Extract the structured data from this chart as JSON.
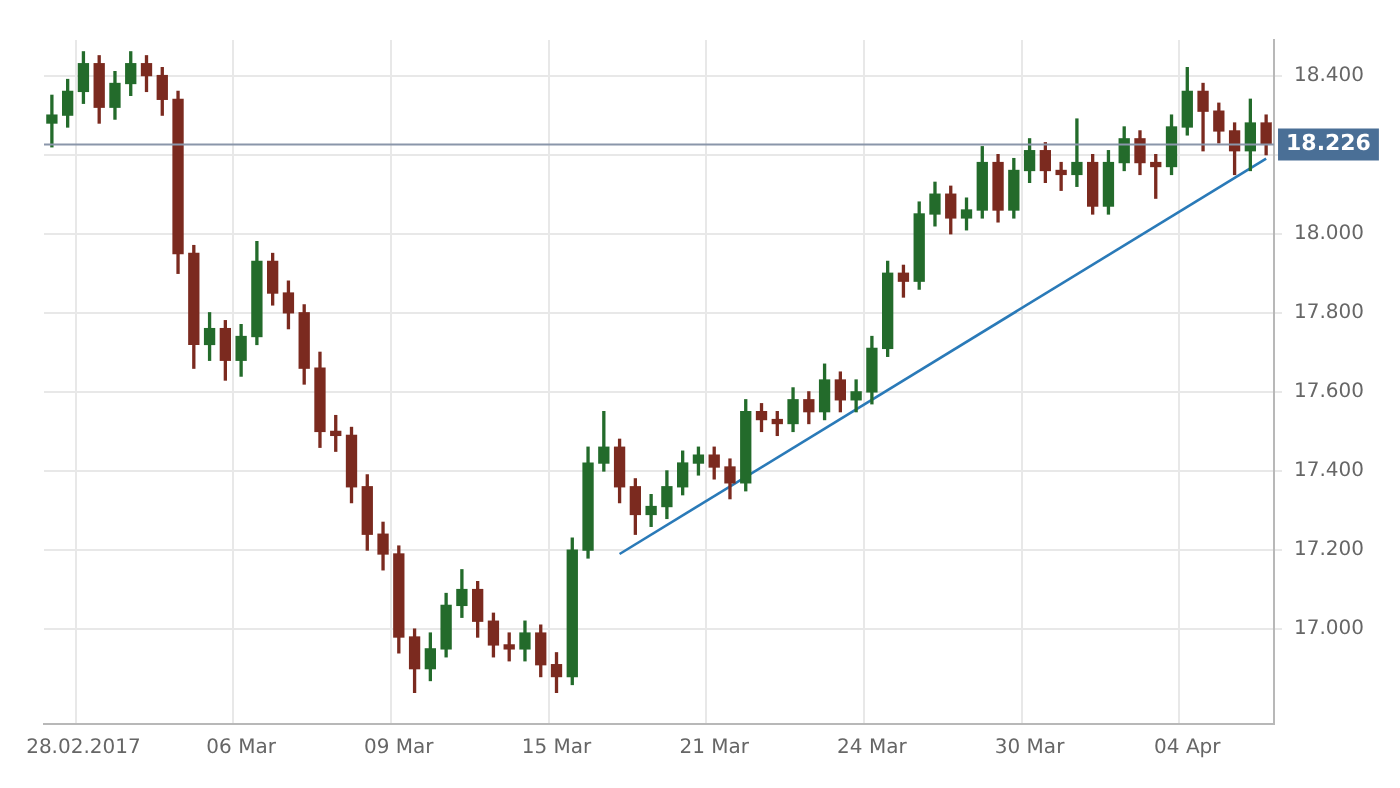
{
  "chart_data": {
    "type": "candlestick",
    "categories": [
      null,
      null,
      "28.02.2017",
      null,
      null,
      null,
      null,
      null,
      null,
      null,
      null,
      null,
      "06 Mar",
      null,
      null,
      null,
      null,
      null,
      null,
      null,
      null,
      null,
      "09 Mar",
      null,
      null,
      null,
      null,
      null,
      null,
      null,
      null,
      null,
      "15 Mar",
      null,
      null,
      null,
      null,
      null,
      null,
      null,
      null,
      null,
      "21 Mar",
      null,
      null,
      null,
      null,
      null,
      null,
      null,
      null,
      null,
      "24 Mar",
      null,
      null,
      null,
      null,
      null,
      null,
      null,
      null,
      null,
      "30 Mar",
      null,
      null,
      null,
      null,
      null,
      null,
      null,
      null,
      null,
      "04 Apr",
      null,
      null,
      null,
      null,
      null
    ],
    "ohlc": [
      [
        18.28,
        18.35,
        18.22,
        18.3
      ],
      [
        18.3,
        18.39,
        18.27,
        18.36
      ],
      [
        18.36,
        18.46,
        18.33,
        18.43
      ],
      [
        18.43,
        18.45,
        18.28,
        18.32
      ],
      [
        18.32,
        18.41,
        18.29,
        18.38
      ],
      [
        18.38,
        18.46,
        18.35,
        18.43
      ],
      [
        18.43,
        18.45,
        18.36,
        18.4
      ],
      [
        18.4,
        18.42,
        18.3,
        18.34
      ],
      [
        18.34,
        18.36,
        17.9,
        17.95
      ],
      [
        17.95,
        17.97,
        17.66,
        17.72
      ],
      [
        17.72,
        17.8,
        17.68,
        17.76
      ],
      [
        17.76,
        17.78,
        17.63,
        17.68
      ],
      [
        17.68,
        17.77,
        17.64,
        17.74
      ],
      [
        17.74,
        17.98,
        17.72,
        17.93
      ],
      [
        17.93,
        17.95,
        17.82,
        17.85
      ],
      [
        17.85,
        17.88,
        17.76,
        17.8
      ],
      [
        17.8,
        17.82,
        17.62,
        17.66
      ],
      [
        17.66,
        17.7,
        17.46,
        17.5
      ],
      [
        17.5,
        17.54,
        17.45,
        17.49
      ],
      [
        17.49,
        17.51,
        17.32,
        17.36
      ],
      [
        17.36,
        17.39,
        17.2,
        17.24
      ],
      [
        17.24,
        17.27,
        17.15,
        17.19
      ],
      [
        17.19,
        17.21,
        16.94,
        16.98
      ],
      [
        16.98,
        17.0,
        16.84,
        16.9
      ],
      [
        16.9,
        16.99,
        16.87,
        16.95
      ],
      [
        16.95,
        17.09,
        16.93,
        17.06
      ],
      [
        17.06,
        17.15,
        17.03,
        17.1
      ],
      [
        17.1,
        17.12,
        16.98,
        17.02
      ],
      [
        17.02,
        17.04,
        16.93,
        16.96
      ],
      [
        16.96,
        16.99,
        16.92,
        16.95
      ],
      [
        16.95,
        17.02,
        16.92,
        16.99
      ],
      [
        16.99,
        17.01,
        16.88,
        16.91
      ],
      [
        16.91,
        16.94,
        16.84,
        16.88
      ],
      [
        16.88,
        17.23,
        16.86,
        17.2
      ],
      [
        17.2,
        17.46,
        17.18,
        17.42
      ],
      [
        17.42,
        17.55,
        17.4,
        17.46
      ],
      [
        17.46,
        17.48,
        17.32,
        17.36
      ],
      [
        17.36,
        17.38,
        17.24,
        17.29
      ],
      [
        17.29,
        17.34,
        17.26,
        17.31
      ],
      [
        17.31,
        17.4,
        17.28,
        17.36
      ],
      [
        17.36,
        17.45,
        17.34,
        17.42
      ],
      [
        17.42,
        17.46,
        17.39,
        17.44
      ],
      [
        17.44,
        17.46,
        17.38,
        17.41
      ],
      [
        17.41,
        17.43,
        17.33,
        17.37
      ],
      [
        17.37,
        17.58,
        17.35,
        17.55
      ],
      [
        17.55,
        17.57,
        17.5,
        17.53
      ],
      [
        17.53,
        17.55,
        17.49,
        17.52
      ],
      [
        17.52,
        17.61,
        17.5,
        17.58
      ],
      [
        17.58,
        17.6,
        17.52,
        17.55
      ],
      [
        17.55,
        17.67,
        17.53,
        17.63
      ],
      [
        17.63,
        17.65,
        17.55,
        17.58
      ],
      [
        17.58,
        17.63,
        17.55,
        17.6
      ],
      [
        17.6,
        17.74,
        17.57,
        17.71
      ],
      [
        17.71,
        17.93,
        17.69,
        17.9
      ],
      [
        17.9,
        17.92,
        17.84,
        17.88
      ],
      [
        17.88,
        18.08,
        17.86,
        18.05
      ],
      [
        18.05,
        18.13,
        18.02,
        18.1
      ],
      [
        18.1,
        18.12,
        18.0,
        18.04
      ],
      [
        18.04,
        18.09,
        18.01,
        18.06
      ],
      [
        18.06,
        18.22,
        18.04,
        18.18
      ],
      [
        18.18,
        18.2,
        18.03,
        18.06
      ],
      [
        18.06,
        18.19,
        18.04,
        18.16
      ],
      [
        18.16,
        18.24,
        18.13,
        18.21
      ],
      [
        18.21,
        18.23,
        18.13,
        18.16
      ],
      [
        18.16,
        18.18,
        18.11,
        18.15
      ],
      [
        18.15,
        18.29,
        18.12,
        18.18
      ],
      [
        18.18,
        18.2,
        18.05,
        18.07
      ],
      [
        18.07,
        18.21,
        18.05,
        18.18
      ],
      [
        18.18,
        18.27,
        18.16,
        18.24
      ],
      [
        18.24,
        18.26,
        18.15,
        18.18
      ],
      [
        18.18,
        18.2,
        18.09,
        18.17
      ],
      [
        18.17,
        18.3,
        18.15,
        18.27
      ],
      [
        18.27,
        18.42,
        18.25,
        18.36
      ],
      [
        18.36,
        18.38,
        18.21,
        18.31
      ],
      [
        18.31,
        18.33,
        18.23,
        18.26
      ],
      [
        18.26,
        18.28,
        18.15,
        18.21
      ],
      [
        18.21,
        18.34,
        18.16,
        18.28
      ],
      [
        18.28,
        18.3,
        18.2,
        18.226
      ]
    ],
    "colors": [
      "#236b2b",
      "#236b2b",
      "#236b2b",
      "#7b2a1f",
      "#236b2b",
      "#236b2b",
      "#7b2a1f",
      "#7b2a1f",
      "#7b2a1f",
      "#7b2a1f",
      "#236b2b",
      "#7b2a1f",
      "#236b2b",
      "#236b2b",
      "#7b2a1f",
      "#7b2a1f",
      "#7b2a1f",
      "#7b2a1f",
      "#7b2a1f",
      "#7b2a1f",
      "#7b2a1f",
      "#7b2a1f",
      "#7b2a1f",
      "#7b2a1f",
      "#236b2b",
      "#236b2b",
      "#236b2b",
      "#7b2a1f",
      "#7b2a1f",
      "#7b2a1f",
      "#236b2b",
      "#7b2a1f",
      "#7b2a1f",
      "#236b2b",
      "#236b2b",
      "#236b2b",
      "#7b2a1f",
      "#7b2a1f",
      "#236b2b",
      "#236b2b",
      "#236b2b",
      "#236b2b",
      "#7b2a1f",
      "#7b2a1f",
      "#236b2b",
      "#7b2a1f",
      "#7b2a1f",
      "#236b2b",
      "#7b2a1f",
      "#236b2b",
      "#7b2a1f",
      "#236b2b",
      "#236b2b",
      "#236b2b",
      "#7b2a1f",
      "#236b2b",
      "#236b2b",
      "#7b2a1f",
      "#236b2b",
      "#236b2b",
      "#7b2a1f",
      "#236b2b",
      "#236b2b",
      "#7b2a1f",
      "#7b2a1f",
      "#236b2b",
      "#7b2a1f",
      "#236b2b",
      "#236b2b",
      "#7b2a1f",
      "#7b2a1f",
      "#236b2b",
      "#236b2b",
      "#7b2a1f",
      "#7b2a1f",
      "#7b2a1f",
      "#236b2b",
      "#7b2a1f"
    ],
    "series": [
      {
        "type": "line",
        "color": "#2a7ab8",
        "values": [
          null,
          null,
          null,
          null,
          null,
          null,
          null,
          null,
          null,
          null,
          null,
          null,
          null,
          null,
          null,
          null,
          null,
          null,
          null,
          null,
          null,
          null,
          null,
          null,
          null,
          null,
          null,
          null,
          null,
          null,
          null,
          null,
          null,
          null,
          null,
          null,
          17.19,
          null,
          null,
          null,
          null,
          null,
          null,
          null,
          null,
          null,
          null,
          null,
          null,
          null,
          null,
          null,
          null,
          null,
          null,
          null,
          null,
          null,
          null,
          null,
          null,
          null,
          null,
          null,
          null,
          null,
          null,
          null,
          null,
          null,
          null,
          null,
          null,
          null,
          null,
          null,
          null,
          18.19
        ]
      }
    ],
    "ylim": [
      16.76,
      18.49
    ],
    "yticks": [
      {
        "value": 17.0,
        "label": "17.000"
      },
      {
        "value": 17.2,
        "label": "17.200"
      },
      {
        "value": 17.4,
        "label": "17.400"
      },
      {
        "value": 17.6,
        "label": "17.600"
      },
      {
        "value": 17.8,
        "label": "17.800"
      },
      {
        "value": 18.0,
        "label": "18.000"
      },
      {
        "value": 18.2,
        "label": null
      },
      {
        "value": 18.4,
        "label": "18.400"
      }
    ],
    "ref_lines": [
      {
        "axis": "y",
        "value": 18.226,
        "label": "18.226",
        "color": "#8a96aa"
      }
    ],
    "grid": true,
    "legend": false,
    "marker": "none",
    "line_style": "solid"
  }
}
